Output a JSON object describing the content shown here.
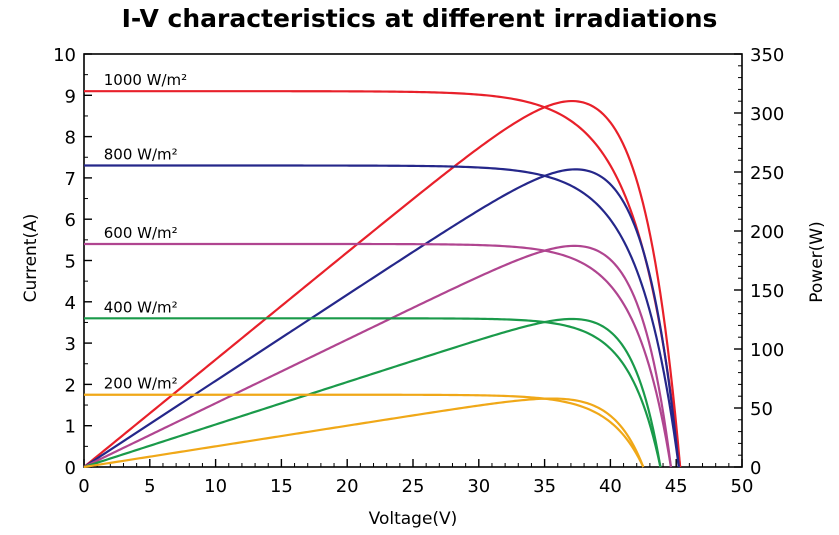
{
  "chart_data": {
    "type": "line",
    "title": "I-V characteristics at different irradiations",
    "xlabel": "Voltage(V)",
    "ylabel_left": "Current(A)",
    "ylabel_right": "Power(W)",
    "xlim": [
      0,
      50
    ],
    "ylim_left": [
      0,
      10
    ],
    "ylim_right": [
      0,
      350
    ],
    "x_ticks": [
      0,
      5,
      10,
      15,
      20,
      25,
      30,
      35,
      40,
      45,
      50
    ],
    "y_left_ticks": [
      0,
      1,
      2,
      3,
      4,
      5,
      6,
      7,
      8,
      9,
      10
    ],
    "y_right_ticks": [
      0,
      50,
      100,
      150,
      200,
      250,
      300,
      350
    ],
    "grid": false,
    "series": [
      {
        "name": "1000 W/m²",
        "color": "#e8202a",
        "isc": 9.1,
        "voc": 45.3,
        "vmp": 36.8,
        "pmax": 310
      },
      {
        "name": "800 W/m²",
        "color": "#25278a",
        "isc": 7.3,
        "voc": 45.2,
        "vmp": 36.9,
        "pmax": 252
      },
      {
        "name": "600 W/m²",
        "color": "#b04590",
        "isc": 5.4,
        "voc": 44.6,
        "vmp": 36.6,
        "pmax": 187
      },
      {
        "name": "400 W/m²",
        "color": "#1a9a4a",
        "isc": 3.6,
        "voc": 43.8,
        "vmp": 36.3,
        "pmax": 125
      },
      {
        "name": "200 W/m²",
        "color": "#f0a818",
        "isc": 1.75,
        "voc": 42.5,
        "vmp": 35.6,
        "pmax": 58
      }
    ]
  }
}
